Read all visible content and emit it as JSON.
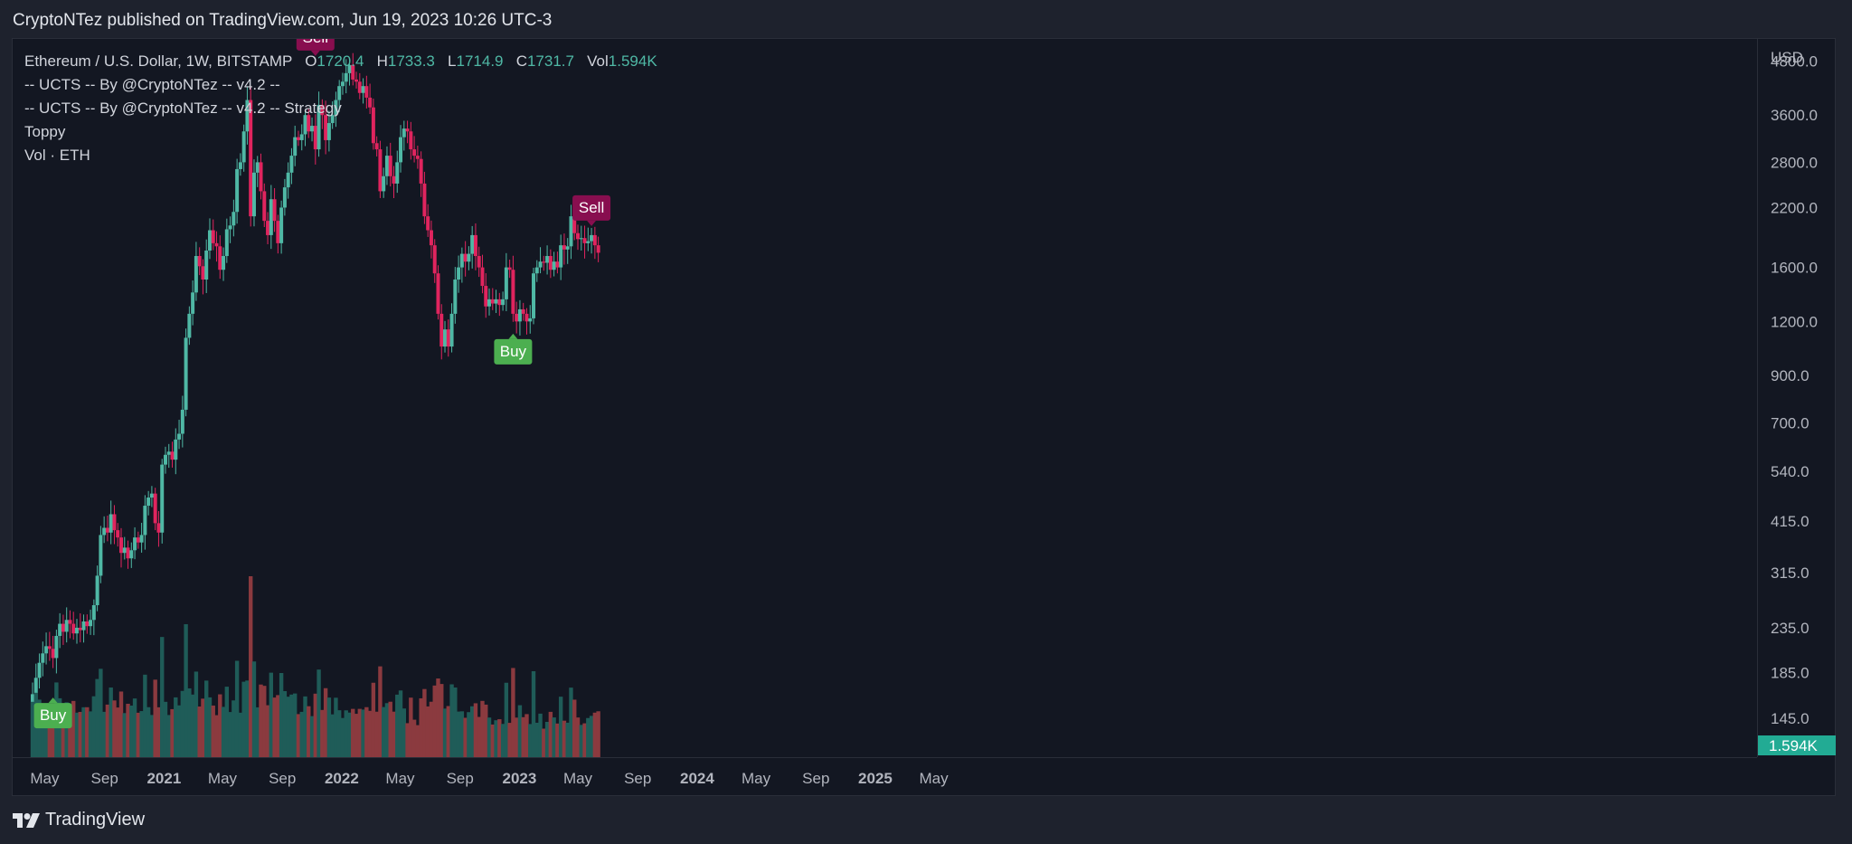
{
  "header": {
    "publisher": "CryptoNTez published on TradingView.com, Jun 19, 2023 10:26 UTC-3"
  },
  "legend": {
    "symbol": "Ethereum / U.S. Dollar, 1W, BITSTAMP",
    "open_label": "O",
    "open": "1720.4",
    "high_label": "H",
    "high": "1733.3",
    "low_label": "L",
    "low": "1714.9",
    "close_label": "C",
    "close": "1731.7",
    "vol_label": "Vol",
    "vol": "1.594K",
    "indicators": [
      "-- UCTS -- By @CryptoNTez -- v4.2 --",
      "-- UCTS -- By @CryptoNTez -- v4.2 -- Strategy",
      "Toppy",
      "Vol · ETH"
    ]
  },
  "price_axis": {
    "currency": "USD",
    "last_volume_badge": "1.594K"
  },
  "footer": {
    "brand": "TradingView",
    "brand_icon": "tradingview-logo-icon"
  },
  "colors": {
    "up": "#4fb8a5",
    "down": "#e0245e",
    "vol_up": "#1f5c58",
    "vol_down": "#8b3a3f",
    "buy": "#4caf50",
    "sell": "#880e4f"
  },
  "chart_data": {
    "type": "candlestick",
    "timeframe": "1W",
    "yscale": "log",
    "ylim": [
      118,
      5400
    ],
    "y_ticks": [
      4800,
      3600,
      2800,
      2200,
      1600,
      1200,
      900,
      700,
      540,
      415,
      315,
      235,
      185,
      145
    ],
    "y_tick_labels": [
      "4800.0",
      "3600.0",
      "2800.0",
      "2200.0",
      "1600.0",
      "1200.0",
      "900.0",
      "700.0",
      "540.0",
      "415.0",
      "315.0",
      "235.0",
      "185.0",
      "145.0"
    ],
    "x_ticks": [
      {
        "label": "May",
        "date": "2020-05-01",
        "bold": false
      },
      {
        "label": "Sep",
        "date": "2020-09-01",
        "bold": false
      },
      {
        "label": "2021",
        "date": "2021-01-01",
        "bold": true
      },
      {
        "label": "May",
        "date": "2021-05-01",
        "bold": false
      },
      {
        "label": "Sep",
        "date": "2021-09-01",
        "bold": false
      },
      {
        "label": "2022",
        "date": "2022-01-01",
        "bold": true
      },
      {
        "label": "May",
        "date": "2022-05-01",
        "bold": false
      },
      {
        "label": "Sep",
        "date": "2022-09-01",
        "bold": false
      },
      {
        "label": "2023",
        "date": "2023-01-01",
        "bold": true
      },
      {
        "label": "May",
        "date": "2023-05-01",
        "bold": false
      },
      {
        "label": "Sep",
        "date": "2023-09-01",
        "bold": false
      },
      {
        "label": "2024",
        "date": "2024-01-01",
        "bold": true
      },
      {
        "label": "May",
        "date": "2024-05-01",
        "bold": false
      },
      {
        "label": "Sep",
        "date": "2024-09-01",
        "bold": false
      },
      {
        "label": "2025",
        "date": "2025-01-01",
        "bold": true
      },
      {
        "label": "May",
        "date": "2025-05-01",
        "bold": false
      }
    ],
    "close_series": {
      "start": "2020-04-06",
      "interval_days": 7,
      "close": [
        165,
        180,
        195,
        205,
        213,
        210,
        200,
        225,
        240,
        230,
        245,
        240,
        228,
        235,
        232,
        243,
        237,
        245,
        265,
        310,
        385,
        400,
        390,
        430,
        395,
        380,
        350,
        360,
        340,
        355,
        380,
        370,
        385,
        450,
        470,
        480,
        410,
        390,
        560,
        590,
        600,
        575,
        640,
        660,
        750,
        1100,
        1250,
        1400,
        1700,
        1610,
        1500,
        1750,
        1950,
        1820,
        1790,
        1580,
        1700,
        1960,
        2000,
        2150,
        2700,
        2800,
        3300,
        3900,
        2100,
        2650,
        2800,
        2400,
        2050,
        1900,
        2300,
        2050,
        1820,
        2200,
        2450,
        2650,
        2900,
        3200,
        3150,
        3250,
        3600,
        3300,
        3400,
        3000,
        3800,
        3600,
        3150,
        3450,
        3600,
        3900,
        4200,
        4300,
        4500,
        4700,
        4350,
        4300,
        4050,
        4200,
        3950,
        3750,
        3100,
        3000,
        2400,
        2600,
        2900,
        2600,
        2500,
        2800,
        3200,
        3350,
        3300,
        3000,
        2900,
        2850,
        2500,
        2100,
        1950,
        1800,
        1550,
        1250,
        1050,
        1150,
        1050,
        1250,
        1500,
        1600,
        1720,
        1650,
        1720,
        1900,
        1700,
        1600,
        1450,
        1300,
        1350,
        1320,
        1350,
        1310,
        1350,
        1600,
        1580,
        1250,
        1200,
        1280,
        1250,
        1200,
        1220,
        1550,
        1600,
        1650,
        1640,
        1700,
        1580,
        1650,
        1600,
        1800,
        1760,
        1790,
        2100,
        1920,
        1860,
        1870,
        1820,
        1840,
        1900,
        1800,
        1730
      ]
    },
    "signals": [
      {
        "label": "Buy",
        "date": "2020-05-18",
        "price": 170
      },
      {
        "label": "Sell",
        "date": "2021-11-08",
        "price": 4700
      },
      {
        "label": "Buy",
        "date": "2022-12-19",
        "price": 1180
      },
      {
        "label": "Sell",
        "date": "2023-05-29",
        "price": 1900
      }
    ]
  }
}
